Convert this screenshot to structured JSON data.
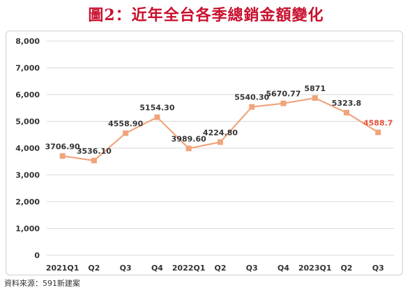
{
  "title": "圖2：近年全台各季總銷金額變化",
  "source": "資料來源：591新建案",
  "colors": {
    "title": "#c8102e",
    "line": "#f0a47c",
    "marker": "#f0a47c",
    "highlight_label": "#e8563c",
    "grid": "#d9d9d9",
    "text": "#333333"
  },
  "chart_data": {
    "type": "line",
    "title": "",
    "xlabel": "",
    "ylabel": "",
    "ylim": [
      0,
      8000
    ],
    "y_ticks": [
      "0",
      "1,000",
      "2,000",
      "3,000",
      "4,000",
      "5,000",
      "6,000",
      "7,000",
      "8,000"
    ],
    "grid": true,
    "legend": "none",
    "categories": [
      "2021Q1",
      "Q2",
      "Q3",
      "Q4",
      "2022Q1",
      "Q2",
      "Q3",
      "Q4",
      "2023Q1",
      "Q2",
      "Q3"
    ],
    "values": [
      3706.9,
      3536.1,
      4558.9,
      5154.3,
      3989.6,
      4224.8,
      5540.3,
      5670.77,
      5871,
      5323.8,
      4588.7
    ],
    "data_labels": [
      "3706.90",
      "3536.10",
      "4558.90",
      "5154.30",
      "3989.60",
      "4224.80",
      "5540.30",
      "5670.77",
      "5871",
      "5323.8",
      "4588.7"
    ],
    "highlight_index": 10
  }
}
